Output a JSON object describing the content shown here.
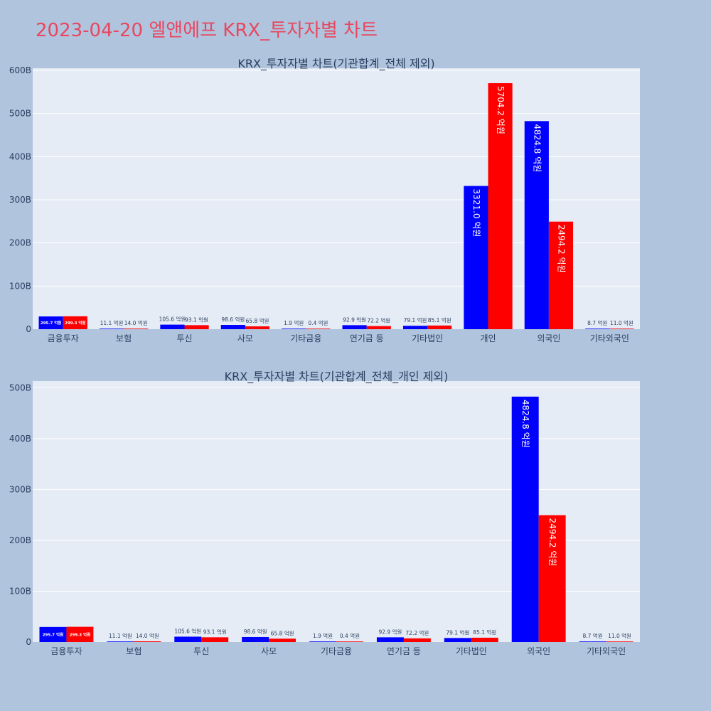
{
  "page": {
    "title": "2023-04-20 엘앤에프 KRX_투자자별 차트"
  },
  "colors": {
    "series_a": "#0000ff",
    "series_b": "#ff0000"
  },
  "chart_data": [
    {
      "type": "bar",
      "title": "KRX_투자자별 차트(기관합계_전체 제외)",
      "categories": [
        "금융투자",
        "보험",
        "투신",
        "사모",
        "기타금융",
        "연기금 등",
        "기타법인",
        "개인",
        "외국인",
        "기타외국인"
      ],
      "series": [
        {
          "color": "#0000ff",
          "values": [
            295.7,
            11.1,
            105.6,
            98.6,
            1.9,
            92.9,
            79.1,
            3321.0,
            4824.8,
            8.7
          ],
          "labels": [
            "295.7 억원",
            "11.1 억원",
            "105.6 억원",
            "98.6 억원",
            "1.9 억원",
            "92.9 억원",
            "79.1 억원",
            "3321.0 억원",
            "4824.8 억원",
            "8.7 억원"
          ]
        },
        {
          "color": "#ff0000",
          "values": [
            299.3,
            14.0,
            93.1,
            65.8,
            0.4,
            72.2,
            85.1,
            5704.2,
            2494.2,
            11.0
          ],
          "labels": [
            "299.3 억원",
            "14.0 억원",
            "93.1 억원",
            "65.8 억원",
            "0.4 억원",
            "72.2 억원",
            "85.1 억원",
            "5704.2 억원",
            "2494.2 억원",
            "11.0 억원"
          ]
        }
      ],
      "yticks": [
        "0",
        "100B",
        "200B",
        "300B",
        "400B",
        "500B",
        "600B"
      ],
      "ytick_values": [
        0,
        1000,
        2000,
        3000,
        4000,
        5000,
        6000
      ],
      "ylim": [
        0,
        6050
      ]
    },
    {
      "type": "bar",
      "title": "KRX_투자자별 차트(기관합계_전체_개인 제외)",
      "categories": [
        "금융투자",
        "보험",
        "투신",
        "사모",
        "기타금융",
        "연기금 등",
        "기타법인",
        "외국인",
        "기타외국인"
      ],
      "series": [
        {
          "color": "#0000ff",
          "values": [
            295.7,
            11.1,
            105.6,
            98.6,
            1.9,
            92.9,
            79.1,
            4824.8,
            8.7
          ],
          "labels": [
            "295.7 억원",
            "11.1 억원",
            "105.6 억원",
            "98.6 억원",
            "1.9 억원",
            "92.9 억원",
            "79.1 억원",
            "4824.8 억원",
            "8.7 억원"
          ]
        },
        {
          "color": "#ff0000",
          "values": [
            299.3,
            14.0,
            93.1,
            65.8,
            0.4,
            72.2,
            85.1,
            2494.2,
            11.0
          ],
          "labels": [
            "299.3 억원",
            "14.0 억원",
            "93.1 억원",
            "65.8 억원",
            "0.4 억원",
            "72.2 억원",
            "85.1 억원",
            "2494.2 억원",
            "11.0 억원"
          ]
        }
      ],
      "yticks": [
        "0",
        "100B",
        "200B",
        "300B",
        "400B",
        "500B"
      ],
      "ytick_values": [
        0,
        1000,
        2000,
        3000,
        4000,
        5000
      ],
      "ylim": [
        0,
        5130
      ]
    }
  ]
}
